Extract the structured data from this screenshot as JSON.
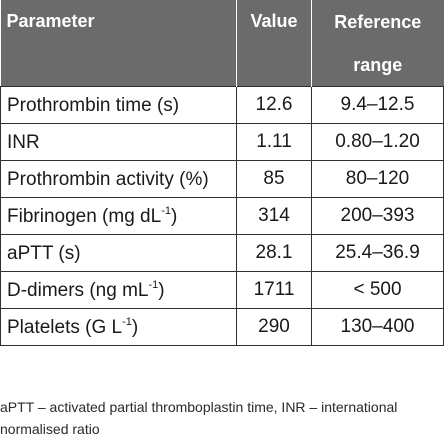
{
  "colors": {
    "header_bg": "#6b6b6b",
    "header_text": "#ffffff",
    "border": "#2f2f2f"
  },
  "table": {
    "headers": {
      "parameter": "Parameter",
      "value": "Value",
      "reference_line1": "Reference",
      "reference_line2": "range"
    },
    "rows": [
      {
        "parameter": "Prothrombin time (s)",
        "sup": "",
        "suffix": "",
        "value": "12.6",
        "reference": "9.4–12.5"
      },
      {
        "parameter": "INR",
        "sup": "",
        "suffix": "",
        "value": "1.11",
        "reference": "0.80–1.20"
      },
      {
        "parameter": "Prothrombin activity (%)",
        "sup": "",
        "suffix": "",
        "value": "85",
        "reference": "80–120"
      },
      {
        "parameter": "Fibrinogen (mg dL",
        "sup": "-1",
        "suffix": ")",
        "value": "314",
        "reference": "200–393"
      },
      {
        "parameter": "aPTT (s)",
        "sup": "",
        "suffix": "",
        "value": "28.1",
        "reference": "25.4–36.9"
      },
      {
        "parameter": "D-dimers (ng mL",
        "sup": "-1",
        "suffix": ")",
        "value": "1711",
        "reference": "< 500"
      },
      {
        "parameter": "Platelets (G L",
        "sup": "-1",
        "suffix": ")",
        "value": "290",
        "reference": "130–400"
      }
    ]
  },
  "footnote": "aPTT – activated partial thromboplastin time, INR – international normalised ratio"
}
